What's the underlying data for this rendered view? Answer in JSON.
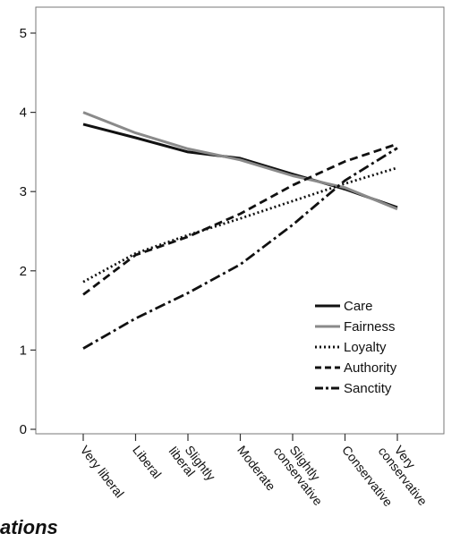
{
  "chart_data": {
    "type": "line",
    "categories": [
      "Very liberal",
      "Liberal",
      "Slightly liberal",
      "Moderate",
      "Slightly conservative",
      "Conservative",
      "Very conservative"
    ],
    "ylim": [
      0,
      5
    ],
    "yticks": [
      0,
      1,
      2,
      3,
      4,
      5
    ],
    "grid": false,
    "legend_position": "lower-right",
    "series": [
      {
        "name": "Care",
        "values": [
          3.85,
          3.68,
          3.5,
          3.42,
          3.22,
          3.03,
          2.8
        ],
        "color": "#111111",
        "dash": "solid"
      },
      {
        "name": "Fairness",
        "values": [
          4.0,
          3.74,
          3.54,
          3.4,
          3.2,
          3.05,
          2.78
        ],
        "color": "#8a8a8a",
        "dash": "solid"
      },
      {
        "name": "Loyalty",
        "values": [
          1.86,
          2.22,
          2.45,
          2.66,
          2.88,
          3.1,
          3.3
        ],
        "color": "#111111",
        "dash": "dotted"
      },
      {
        "name": "Authority",
        "values": [
          1.7,
          2.2,
          2.43,
          2.72,
          3.08,
          3.38,
          3.6
        ],
        "color": "#111111",
        "dash": "dashed"
      },
      {
        "name": "Sanctity",
        "values": [
          1.02,
          1.4,
          1.72,
          2.08,
          2.58,
          3.14,
          3.55
        ],
        "color": "#111111",
        "dash": "dashdot"
      }
    ]
  },
  "caption": "ations"
}
